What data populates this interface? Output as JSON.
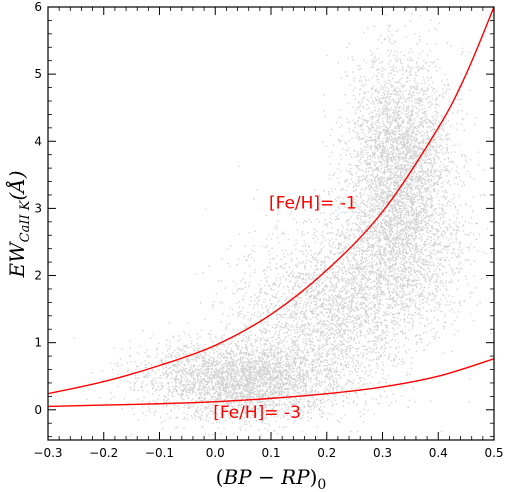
{
  "chart_data": {
    "type": "scatter",
    "xlabel": {
      "open": "(",
      "main": "BP",
      "op": " − ",
      "second": "RP",
      "close": ")",
      "sub": "0"
    },
    "ylabel": {
      "main": "EW",
      "sub": "CaII K",
      "unit": "(Å)"
    },
    "xlim": [
      -0.3,
      0.5
    ],
    "ylim": [
      -0.45,
      6.0
    ],
    "xticks": [
      -0.3,
      -0.2,
      -0.1,
      0.0,
      0.1,
      0.2,
      0.3,
      0.4,
      0.5
    ],
    "xtick_labels": [
      "−0.3",
      "−0.2",
      "−0.1",
      "0.0",
      "0.1",
      "0.2",
      "0.3",
      "0.4",
      "0.5"
    ],
    "yticks": [
      0,
      1,
      2,
      3,
      4,
      5,
      6
    ],
    "ytick_labels": [
      "0",
      "1",
      "2",
      "3",
      "4",
      "5",
      "6"
    ],
    "grid": false,
    "point_color": "#999999",
    "curve_color": "#ff0000",
    "density_model": {
      "n_points": 14000,
      "components": [
        {
          "weight": 0.3,
          "x_mean": 0.05,
          "x_sd": 0.09,
          "y_mean": 0.45,
          "y_sd": 0.3
        },
        {
          "weight": 0.22,
          "x_mean": 0.2,
          "x_sd": 0.08,
          "y_mean": 1.5,
          "y_sd": 0.6
        },
        {
          "weight": 0.3,
          "x_mean": 0.33,
          "x_sd": 0.045,
          "y_mean": 3.8,
          "y_sd": 0.75
        },
        {
          "weight": 0.18,
          "x_mean": 0.33,
          "x_sd": 0.06,
          "y_mean": 2.4,
          "y_sd": 0.6
        }
      ]
    },
    "curves": [
      {
        "label": "[Fe/H]= -1",
        "x": [
          -0.3,
          -0.2,
          -0.1,
          0.0,
          0.1,
          0.2,
          0.3,
          0.4,
          0.45,
          0.5
        ],
        "y": [
          0.24,
          0.42,
          0.66,
          0.96,
          1.42,
          2.08,
          2.95,
          4.2,
          5.0,
          6.0
        ],
        "label_at": [
          0.175,
          3.0
        ]
      },
      {
        "label": "[Fe/H]= -3",
        "x": [
          -0.3,
          -0.2,
          -0.1,
          0.0,
          0.1,
          0.2,
          0.3,
          0.4,
          0.5
        ],
        "y": [
          0.05,
          0.07,
          0.09,
          0.12,
          0.17,
          0.24,
          0.34,
          0.5,
          0.76
        ],
        "label_at": [
          0.075,
          -0.12
        ]
      }
    ]
  }
}
